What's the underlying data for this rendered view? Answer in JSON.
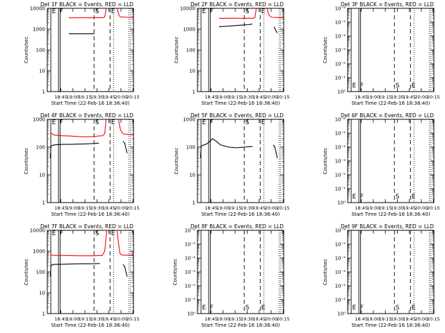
{
  "chart_data": [
    {
      "type": "line",
      "title": "Det 1F BLACK = Events, RED = LLD",
      "xlabel": "Start Time (22-Feb-16 18:36:40)",
      "ylabel": "Counts/sec",
      "xticks": [
        "18:45",
        "19:00",
        "19:15",
        "19:30",
        "19:45",
        "20:00",
        "20:15"
      ],
      "yscale": "log",
      "ytick_labels": [
        "1",
        "10",
        "100",
        "1000",
        "10000"
      ],
      "markers": [
        "E",
        "F",
        "S",
        "E"
      ],
      "series": [
        {
          "name": "RED",
          "color": "#ff0000",
          "segments": [
            {
              "x": [
                18.2,
                25,
                35,
                45,
                55,
                60,
                63,
                66
              ],
              "y": [
                3500,
                3500,
                3550,
                3500,
                3600,
                3500,
                3800,
                20000
              ]
            },
            {
              "x": [
                78,
                79,
                81,
                82,
                84,
                95,
                105,
                110
              ],
              "y": [
                20000,
                8000,
                4500,
                4000,
                3800,
                3700,
                3700,
                3700
              ]
            }
          ]
        },
        {
          "name": "BLACK",
          "color": "#000000",
          "segments": [
            {
              "x": [
                18.2,
                25,
                35,
                45,
                50
              ],
              "y": [
                600,
                600,
                600,
                600,
                600
              ]
            }
          ]
        }
      ]
    },
    {
      "type": "line",
      "title": "Det 2F BLACK = Events, RED = LLD",
      "xlabel": "Start Time (22-Feb-16 18:36:40)",
      "ylabel": "Counts/sec",
      "xticks": [
        "18:45",
        "19:00",
        "19:15",
        "19:30",
        "19:45",
        "20:00",
        "20:15"
      ],
      "yscale": "log",
      "ytick_labels": [
        "1",
        "10",
        "100",
        "1000",
        "10000"
      ],
      "markers": [
        "E",
        "F",
        "S",
        "E"
      ],
      "series": [
        {
          "name": "RED",
          "color": "#ff0000",
          "segments": [
            {
              "x": [
                18.2,
                25,
                35,
                45,
                55,
                60,
                63,
                66
              ],
              "y": [
                3300,
                3300,
                3350,
                3300,
                3350,
                3300,
                3600,
                20000
              ]
            },
            {
              "x": [
                78,
                79,
                81,
                84,
                95,
                110
              ],
              "y": [
                20000,
                7000,
                4500,
                3700,
                3600,
                3600
              ]
            }
          ]
        },
        {
          "name": "BLACK",
          "color": "#000000",
          "segments": [
            {
              "x": [
                18.2,
                25,
                35,
                45,
                55,
                60
              ],
              "y": [
                1300,
                1350,
                1450,
                1550,
                1650,
                1750
              ]
            },
            {
              "x": [
                87,
                89,
                91
              ],
              "y": [
                1300,
                900,
                650
              ]
            }
          ]
        }
      ]
    },
    {
      "type": "line",
      "title": "Det 3F BLACK = Events, RED = LLD",
      "xlabel": "Start Time (22-Feb-16 18:36:40)",
      "ylabel": "Counts/sec",
      "xticks": [
        "18:45",
        "19:00",
        "19:15",
        "19:30",
        "19:45",
        "20:00",
        "20:15"
      ],
      "yscale": "log",
      "ytick_labels": [
        "10⁰",
        "10⁻¹",
        "10⁻²",
        "10⁻³",
        "10⁻⁴",
        "10⁻⁵",
        "10⁻⁶"
      ],
      "markers": [
        "E",
        "F",
        "S",
        "E"
      ],
      "series": []
    },
    {
      "type": "line",
      "title": "Det 4F BLACK = Events, RED = LLD",
      "xlabel": "Start Time (22-Feb-16 18:36:40)",
      "ylabel": "Counts/sec",
      "xticks": [
        "18:45",
        "19:00",
        "19:15",
        "19:30",
        "19:45",
        "20:00",
        "20:15"
      ],
      "yscale": "log",
      "ytick_labels": [
        "1",
        "10",
        "100",
        "1000"
      ],
      "markers": [
        "E",
        "F",
        "S",
        "E"
      ],
      "series": [
        {
          "name": "RED",
          "color": "#ff0000",
          "segments": [
            {
              "x": [
                -5,
                0,
                10,
                20,
                30,
                40,
                50,
                55,
                60,
                63,
                65
              ],
              "y": [
                330,
                270,
                255,
                250,
                240,
                235,
                240,
                250,
                255,
                300,
                1300
              ]
            },
            {
              "x": [
                80,
                81,
                83,
                86,
                95,
                100,
                105,
                110
              ],
              "y": [
                1300,
                700,
                400,
                300,
                280,
                270,
                280,
                300
              ]
            }
          ]
        },
        {
          "name": "BLACK",
          "color": "#000000",
          "segments": [
            {
              "x": [
                -5,
                -4,
                0,
                10,
                20,
                30,
                40,
                50,
                56
              ],
              "y": [
                40,
                110,
                120,
                125,
                125,
                128,
                130,
                135,
                140
              ]
            },
            {
              "x": [
                86,
                88,
                91
              ],
              "y": [
                160,
                140,
                60
              ]
            }
          ]
        }
      ]
    },
    {
      "type": "line",
      "title": "Det 5F BLACK = Events, RED = LLD",
      "xlabel": "Start Time (22-Feb-16 18:36:40)",
      "ylabel": "Counts/sec",
      "xticks": [
        "18:45",
        "19:00",
        "19:15",
        "19:30",
        "19:45",
        "20:00",
        "20:15"
      ],
      "yscale": "log",
      "ytick_labels": [
        "1",
        "10",
        "100",
        "1000"
      ],
      "markers": [
        "E",
        "F",
        "S",
        "E"
      ],
      "series": [
        {
          "name": "BLACK",
          "color": "#000000",
          "segments": [
            {
              "x": [
                -5,
                -4,
                3,
                10,
                15,
                20,
                30,
                40,
                50,
                60
              ],
              "y": [
                40,
                110,
                130,
                200,
                160,
                120,
                100,
                95,
                100,
                105
              ]
            },
            {
              "x": [
                86,
                88,
                91
              ],
              "y": [
                120,
                100,
                40
              ]
            }
          ]
        }
      ]
    },
    {
      "type": "line",
      "title": "Det 6F BLACK = Events, RED = LLD",
      "xlabel": "Start Time (22-Feb-16 18:36:40)",
      "ylabel": "Counts/sec",
      "xticks": [
        "18:45",
        "19:00",
        "19:15",
        "19:30",
        "19:45",
        "20:00",
        "20:15"
      ],
      "yscale": "log",
      "ytick_labels": [
        "10⁰",
        "10⁻¹",
        "10⁻²",
        "10⁻³",
        "10⁻⁴",
        "10⁻⁵",
        "10⁻⁶"
      ],
      "markers": [
        "E",
        "F",
        "S",
        "E"
      ],
      "series": []
    },
    {
      "type": "line",
      "title": "Det 7F BLACK = Events, RED = LLD",
      "xlabel": "Start Time (22-Feb-16 18:36:40)",
      "ylabel": "Counts/sec",
      "xticks": [
        "18:45",
        "19:00",
        "19:15",
        "19:30",
        "19:45",
        "20:00",
        "20:15"
      ],
      "yscale": "log",
      "ytick_labels": [
        "1",
        "10",
        "100",
        "1000",
        "10000"
      ],
      "markers": [
        "E",
        "F",
        "S",
        "E"
      ],
      "series": [
        {
          "name": "RED",
          "color": "#ff0000",
          "segments": [
            {
              "x": [
                -5,
                0,
                10,
                20,
                30,
                40,
                50,
                55,
                60,
                63,
                66
              ],
              "y": [
                650,
                620,
                620,
                610,
                600,
                600,
                600,
                610,
                620,
                1000,
                14000
              ]
            },
            {
              "x": [
                78,
                80,
                82,
                84,
                90,
                100,
                110
              ],
              "y": [
                14000,
                3000,
                800,
                650,
                640,
                640,
                630
              ]
            }
          ]
        },
        {
          "name": "BLACK",
          "color": "#000000",
          "segments": [
            {
              "x": [
                -5,
                -4,
                0,
                10,
                20,
                30,
                40,
                50,
                57
              ],
              "y": [
                60,
                210,
                230,
                235,
                240,
                245,
                248,
                250,
                255
              ]
            },
            {
              "x": [
                86,
                88,
                91
              ],
              "y": [
                230,
                180,
                60
              ]
            }
          ]
        }
      ]
    },
    {
      "type": "line",
      "title": "Det 8F BLACK = Events, RED = LLD",
      "xlabel": "Start Time (22-Feb-16 18:36:40)",
      "ylabel": "Counts/sec",
      "xticks": [
        "18:45",
        "19:00",
        "19:15",
        "19:30",
        "19:45",
        "20:00",
        "20:15"
      ],
      "yscale": "log",
      "ytick_labels": [
        "10⁰",
        "10⁻¹",
        "10⁻²",
        "10⁻³",
        "10⁻⁴",
        "10⁻⁵",
        "10⁻⁶"
      ],
      "markers": [
        "E",
        "F",
        "S",
        "E"
      ],
      "series": []
    },
    {
      "type": "line",
      "title": "Det 9F BLACK = Events, RED = LLD",
      "xlabel": "Start Time (22-Feb-16 18:36:40)",
      "ylabel": "Counts/sec",
      "xticks": [
        "18:45",
        "19:00",
        "19:15",
        "19:30",
        "19:45",
        "20:00",
        "20:15"
      ],
      "yscale": "log",
      "ytick_labels": [
        "10⁰",
        "10⁻¹",
        "10⁻²",
        "10⁻³",
        "10⁻⁴",
        "10⁻⁵",
        "10⁻⁶"
      ],
      "markers": [
        "E",
        "F",
        "S",
        "E"
      ],
      "series": []
    }
  ]
}
